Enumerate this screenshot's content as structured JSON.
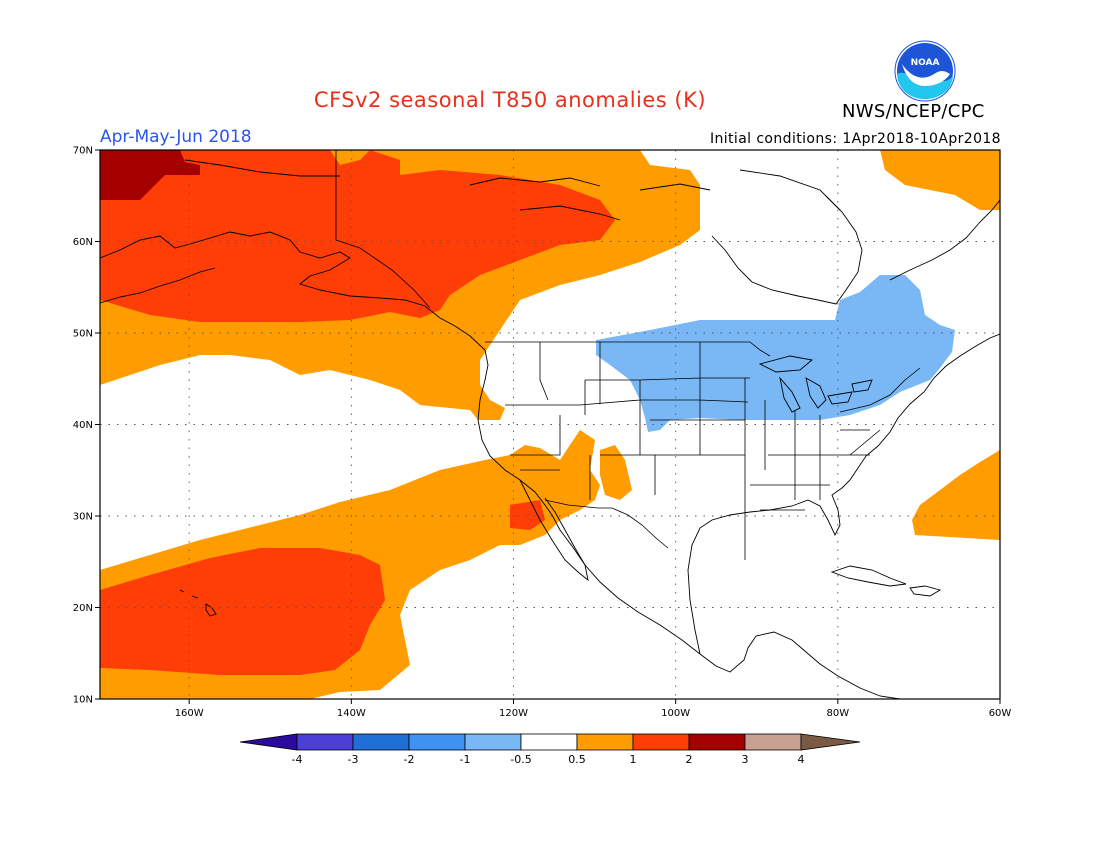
{
  "header": {
    "title": "CFSv2 seasonal T850 anomalies (K)",
    "agency": "NWS/NCEP/CPC",
    "season": "Apr-May-Jun 2018",
    "initial_conditions": "Initial conditions: 1Apr2018-10Apr2018",
    "logo_text": "NOAA"
  },
  "map": {
    "lon_range": [
      -171,
      -60
    ],
    "lat_range": [
      10,
      70
    ],
    "lon_tick_labels": [
      "160W",
      "140W",
      "120W",
      "100W",
      "80W",
      "60W"
    ],
    "lat_tick_labels": [
      "10N",
      "20N",
      "30N",
      "40N",
      "50N",
      "60N",
      "70N"
    ]
  },
  "legend": {
    "tick_labels": [
      "-4",
      "-3",
      "-2",
      "-1",
      "-0.5",
      "0.5",
      "1",
      "2",
      "3",
      "4"
    ],
    "colors": [
      "#2b0b9e",
      "#4c3fd6",
      "#1f6fd6",
      "#3e93f2",
      "#79b8f5",
      "#ffffff",
      "#ff9c00",
      "#ff3d06",
      "#a50000",
      "#c8a090",
      "#7a5a44"
    ]
  },
  "colors": {
    "orange": "#ff9c00",
    "red_orange": "#ff3d06",
    "dark_red": "#a50000",
    "light_blue": "#79b8f5",
    "title_red": "#e8301c",
    "season_blue": "#2a54f0",
    "logo_blue": "#1d55d6",
    "logo_cyan": "#23c6ee"
  }
}
